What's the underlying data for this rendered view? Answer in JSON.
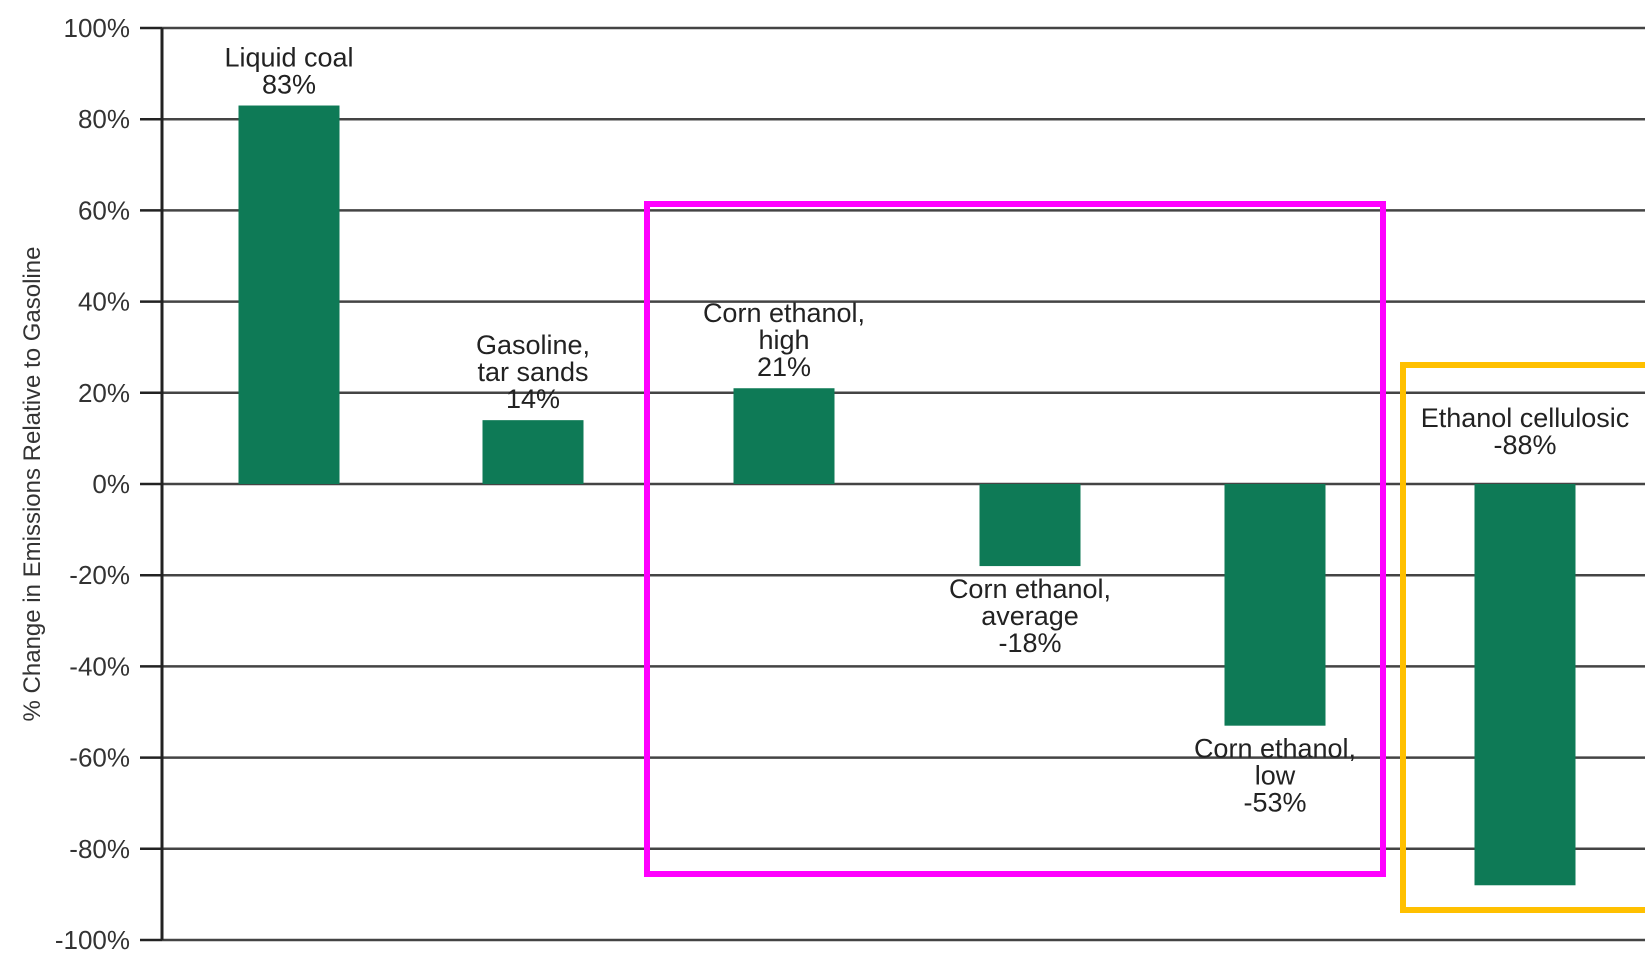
{
  "chart_data": {
    "type": "bar",
    "title": "",
    "xlabel": "",
    "ylabel": "% Change in Emissions Relative to Gasoline",
    "ylim": [
      -100,
      100
    ],
    "yticks": [
      100,
      80,
      60,
      40,
      20,
      0,
      -20,
      -40,
      -60,
      -80,
      -100
    ],
    "ytick_labels": [
      "100%",
      "80%",
      "60%",
      "40%",
      "20%",
      "0%",
      "-20%",
      "-40%",
      "-60%",
      "-80%",
      "-100%"
    ],
    "grid": true,
    "bar_color": "#0e7a56",
    "categories": [
      "Liquid coal",
      "Gasoline, tar sands",
      "Corn ethanol, high",
      "Corn ethanol, average",
      "Corn ethanol, low",
      "Ethanol cellulosic"
    ],
    "values": [
      83,
      14,
      21,
      -18,
      -53,
      -88
    ],
    "data_labels": [
      [
        "Liquid coal",
        "83%"
      ],
      [
        "Gasoline,",
        "tar sands",
        "14%"
      ],
      [
        "Corn ethanol,",
        "high",
        "21%"
      ],
      [
        "Corn ethanol,",
        "average",
        "-18%"
      ],
      [
        "Corn ethanol,",
        "low",
        "-53%"
      ],
      [
        "Ethanol cellulosic",
        "-88%"
      ]
    ],
    "annotations": [
      {
        "type": "box",
        "color": "#ff00ff",
        "covers": [
          "Corn ethanol, high",
          "Corn ethanol, average",
          "Corn ethanol, low"
        ]
      },
      {
        "type": "box",
        "color": "#ffc000",
        "covers": [
          "Ethanol cellulosic"
        ]
      }
    ]
  }
}
